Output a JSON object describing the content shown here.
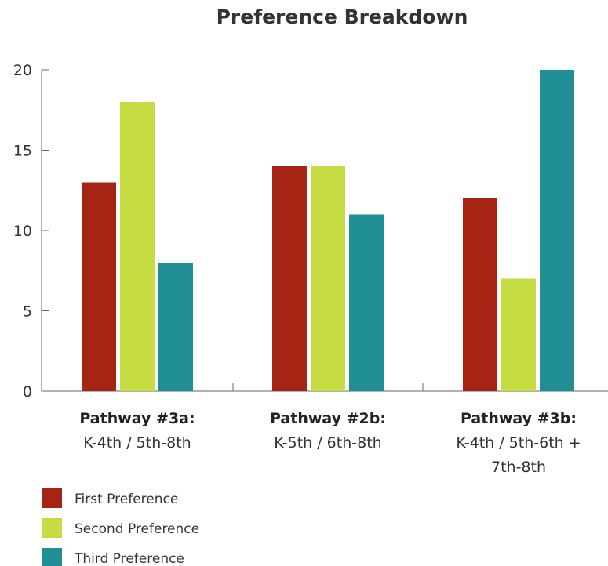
{
  "chart_data": {
    "type": "bar",
    "title": "Preference Breakdown",
    "xlabel": "",
    "ylabel": "",
    "ylim": [
      0,
      20
    ],
    "yticks": [
      0,
      5,
      10,
      15,
      20
    ],
    "grid": false,
    "legend_position": "bottom-left",
    "categories": [
      {
        "name": "Pathway #3a:",
        "lines": [
          "K-4th / 5th-8th"
        ]
      },
      {
        "name": "Pathway #2b:",
        "lines": [
          "K-5th / 6th-8th"
        ]
      },
      {
        "name": "Pathway #3b:",
        "lines": [
          "K-4th / 5th-6th +",
          "7th-8th"
        ]
      }
    ],
    "series": [
      {
        "name": "First Preference",
        "color": "#a52414",
        "values": [
          13,
          14,
          12
        ]
      },
      {
        "name": "Second Preference",
        "color": "#c7dc42",
        "values": [
          18,
          14,
          7
        ]
      },
      {
        "name": "Third Preference",
        "color": "#208f93",
        "values": [
          8,
          11,
          20
        ]
      }
    ]
  }
}
